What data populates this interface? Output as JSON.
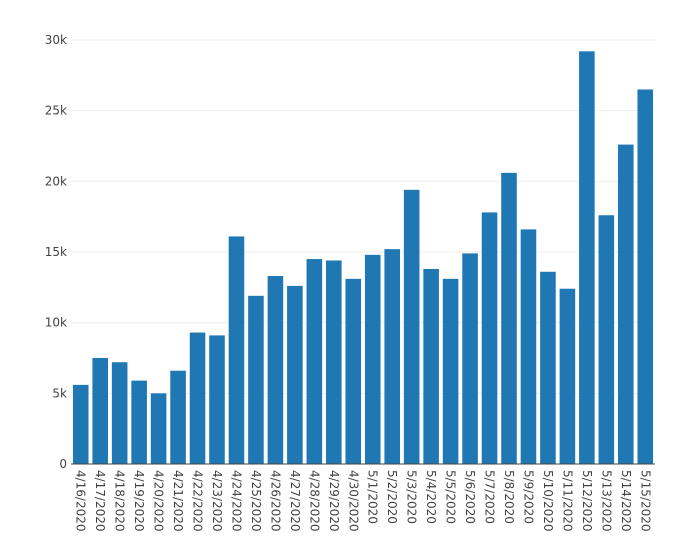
{
  "chart_data": {
    "type": "bar",
    "categories": [
      "4/16/2020",
      "4/17/2020",
      "4/18/2020",
      "4/19/2020",
      "4/20/2020",
      "4/21/2020",
      "4/22/2020",
      "4/23/2020",
      "4/24/2020",
      "4/25/2020",
      "4/26/2020",
      "4/27/2020",
      "4/28/2020",
      "4/29/2020",
      "4/30/2020",
      "5/1/2020",
      "5/2/2020",
      "5/3/2020",
      "5/4/2020",
      "5/5/2020",
      "5/6/2020",
      "5/7/2020",
      "5/8/2020",
      "5/9/2020",
      "5/10/2020",
      "5/11/2020",
      "5/12/2020",
      "5/13/2020",
      "5/14/2020",
      "5/15/2020"
    ],
    "values": [
      5600,
      7500,
      7200,
      5900,
      5000,
      6600,
      9300,
      9100,
      16100,
      11900,
      13300,
      12600,
      14500,
      14400,
      13100,
      14800,
      15200,
      19400,
      13800,
      13100,
      14900,
      17800,
      20600,
      16600,
      13600,
      12400,
      29200,
      17600,
      22600,
      26500
    ],
    "y_ticks": [
      0,
      5000,
      10000,
      15000,
      20000,
      25000,
      30000
    ],
    "y_tick_labels": [
      "0",
      "5k",
      "10k",
      "15k",
      "20k",
      "25k",
      "30k"
    ],
    "ylim": [
      0,
      30500
    ],
    "title": "",
    "xlabel": "",
    "ylabel": "",
    "grid": true,
    "bar_color": "#1f77b4"
  }
}
